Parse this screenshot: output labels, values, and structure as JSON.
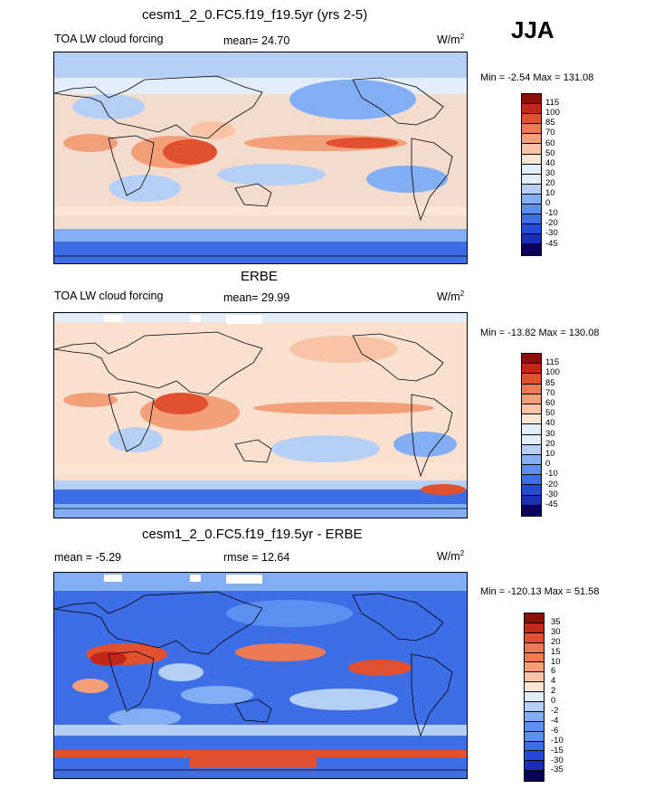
{
  "season": "JJA",
  "units": "W/m",
  "units_sup": "2",
  "colors": {
    "scale_abs": [
      "#08005a",
      "#1a2fb5",
      "#2549d8",
      "#3e6ee6",
      "#5c8ff0",
      "#84aef3",
      "#b5cff7",
      "#e3eefb",
      "#fde5d3",
      "#f9c4a5",
      "#f3a07a",
      "#ec7a55",
      "#e2512f",
      "#c52716",
      "#8e0f08"
    ],
    "scale_diff": [
      "#08005a",
      "#1a2fb5",
      "#2549d8",
      "#3e6ee6",
      "#5c8ff0",
      "#84aef3",
      "#b5cff7",
      "#e3eefb",
      "#fde5d3",
      "#f9c4a5",
      "#f3a07a",
      "#ec7a55",
      "#e2512f",
      "#c52716",
      "#8e0f08"
    ]
  },
  "panels": [
    {
      "title": "cesm1_2_0.FC5.f19_f19.5yr (yrs 2-5)",
      "left_label": "TOA LW cloud forcing",
      "stat_label": "mean=  24.70",
      "minmax": "Min =  -2.54 Max = 131.08",
      "levels": [
        "115",
        "100",
        "85",
        "70",
        "60",
        "50",
        "40",
        "30",
        "20",
        "10",
        "0",
        "-10",
        "-20",
        "-30",
        "-45"
      ]
    },
    {
      "title": "ERBE",
      "left_label": "TOA LW cloud forcing",
      "stat_label": "mean=  29.99",
      "minmax": "Min = -13.82 Max = 130.08",
      "levels": [
        "115",
        "100",
        "85",
        "70",
        "60",
        "50",
        "40",
        "30",
        "20",
        "10",
        "0",
        "-10",
        "-20",
        "-30",
        "-45"
      ]
    },
    {
      "title": "cesm1_2_0.FC5.f19_f19.5yr - ERBE",
      "left_label": "mean =  -5.29",
      "stat_label": "rmse =  12.64",
      "minmax": "Min = -120.13 Max =  51.58",
      "levels": [
        "35",
        "30",
        "20",
        "15",
        "10",
        "6",
        "4",
        "2",
        "0",
        "-2",
        "-4",
        "-6",
        "-10",
        "-15",
        "-30",
        "-35"
      ]
    }
  ],
  "chart_data": [
    {
      "type": "heatmap",
      "title": "cesm1_2_0.FC5.f19_f19.5yr (yrs 2-5)",
      "variable": "TOA LW cloud forcing",
      "units": "W/m2",
      "mean": 24.7,
      "min": -2.54,
      "max": 131.08,
      "contour_levels": [
        -45,
        -30,
        -20,
        -10,
        0,
        10,
        20,
        30,
        40,
        50,
        60,
        70,
        85,
        100,
        115
      ]
    },
    {
      "type": "heatmap",
      "title": "ERBE",
      "variable": "TOA LW cloud forcing",
      "units": "W/m2",
      "mean": 29.99,
      "min": -13.82,
      "max": 130.08,
      "contour_levels": [
        -45,
        -30,
        -20,
        -10,
        0,
        10,
        20,
        30,
        40,
        50,
        60,
        70,
        85,
        100,
        115
      ]
    },
    {
      "type": "heatmap",
      "title": "cesm1_2_0.FC5.f19_f19.5yr - ERBE",
      "units": "W/m2",
      "mean": -5.29,
      "rmse": 12.64,
      "min": -120.13,
      "max": 51.58,
      "contour_levels": [
        -35,
        -30,
        -15,
        -10,
        -6,
        -4,
        -2,
        0,
        2,
        4,
        6,
        10,
        15,
        20,
        30,
        35
      ]
    }
  ]
}
